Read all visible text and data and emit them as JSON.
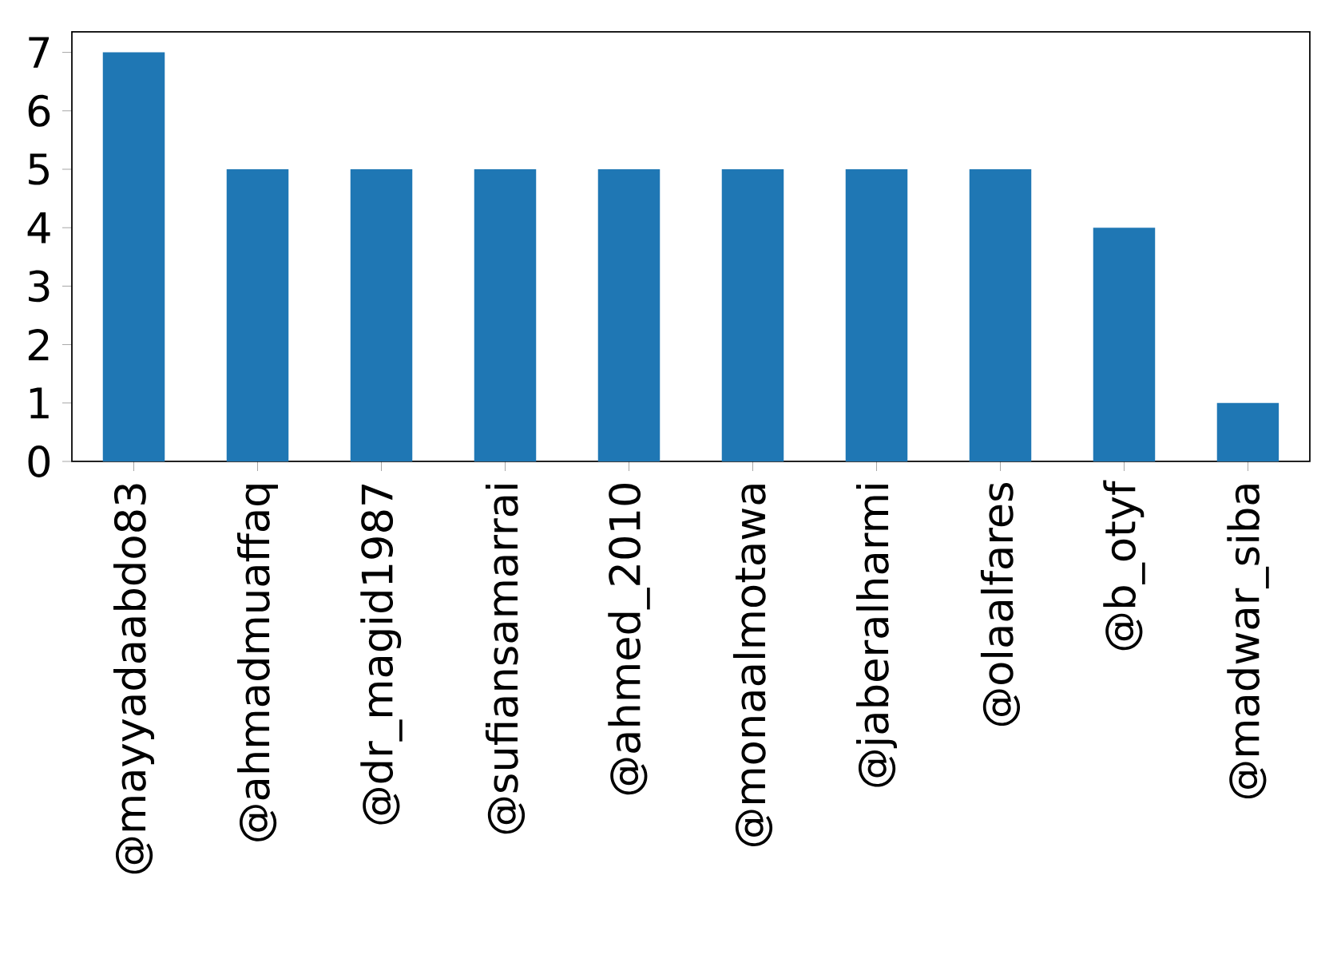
{
  "chart_data": {
    "type": "bar",
    "categories": [
      "@mayyadaabdo83",
      "@ahmadmuaffaq",
      "@dr_magid1987",
      "@sufiansamarrai",
      "@ahmed_2010",
      "@monaalmotawa",
      "@jaberalharmi",
      "@olaalfares",
      "@b_otyf",
      "@madwar_siba"
    ],
    "values": [
      7,
      5,
      5,
      5,
      5,
      5,
      5,
      5,
      4,
      1
    ],
    "color": "#1f77b4",
    "ylim": [
      0,
      7.35
    ],
    "yticks": [
      0,
      1,
      2,
      3,
      4,
      5,
      6,
      7
    ]
  }
}
